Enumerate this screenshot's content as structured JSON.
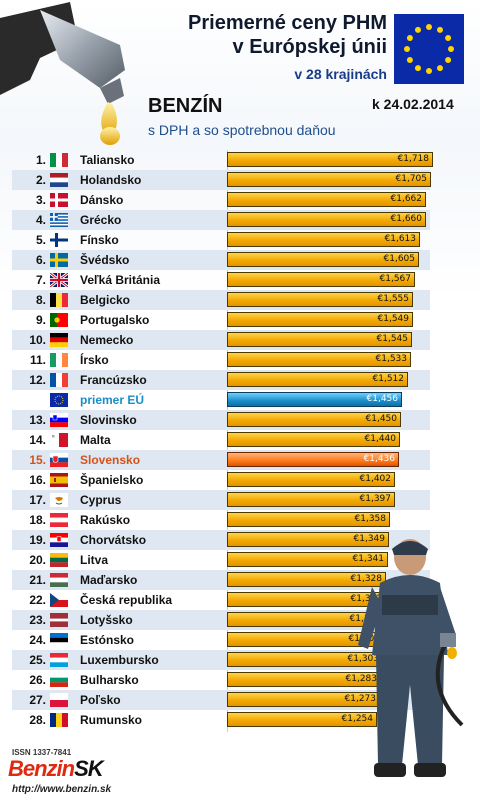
{
  "header": {
    "title_line1": "Priemerné ceny PHM",
    "title_line2": "v Európskej únii",
    "title_line3": "v 28 krajinách",
    "fuel": "BENZÍN",
    "subtitle": "s DPH a so spotrebnou daňou",
    "date": "k 24.02.2014"
  },
  "footer": {
    "issn": "ISSN 1337-7841",
    "logo_main": "Benzin",
    "logo_suffix": "SK",
    "url": "http://www.benzin.sk"
  },
  "colors": {
    "bar": "#f2a600",
    "eu_bar": "#1a8ec8",
    "sk_bar": "#ff7a1a",
    "title": "#101a2e"
  },
  "chart_data": {
    "type": "bar",
    "orientation": "horizontal",
    "title": "Priemerné ceny PHM v Európskej únii",
    "xlabel": "",
    "ylabel": "",
    "xlim": [
      0,
      1.718
    ],
    "grid": false,
    "rows": [
      {
        "rank": "1.",
        "country": "Taliansko",
        "value": 1.718,
        "label": "€1,718",
        "flag": "italy-flag"
      },
      {
        "rank": "2.",
        "country": "Holandsko",
        "value": 1.705,
        "label": "€1,705",
        "flag": "netherlands-flag"
      },
      {
        "rank": "3.",
        "country": "Dánsko",
        "value": 1.662,
        "label": "€1,662",
        "flag": "denmark-flag"
      },
      {
        "rank": "4.",
        "country": "Grécko",
        "value": 1.66,
        "label": "€1,660",
        "flag": "greece-flag"
      },
      {
        "rank": "5.",
        "country": "Fínsko",
        "value": 1.613,
        "label": "€1,613",
        "flag": "finland-flag"
      },
      {
        "rank": "6.",
        "country": "Švédsko",
        "value": 1.605,
        "label": "€1,605",
        "flag": "sweden-flag"
      },
      {
        "rank": "7.",
        "country": "Veľká Británia",
        "value": 1.567,
        "label": "€1,567",
        "flag": "uk-flag"
      },
      {
        "rank": "8.",
        "country": "Belgicko",
        "value": 1.555,
        "label": "€1,555",
        "flag": "belgium-flag"
      },
      {
        "rank": "9.",
        "country": "Portugalsko",
        "value": 1.549,
        "label": "€1,549",
        "flag": "portugal-flag"
      },
      {
        "rank": "10.",
        "country": "Nemecko",
        "value": 1.545,
        "label": "€1,545",
        "flag": "germany-flag"
      },
      {
        "rank": "11.",
        "country": "Írsko",
        "value": 1.533,
        "label": "€1,533",
        "flag": "ireland-flag"
      },
      {
        "rank": "12.",
        "country": "Francúzsko",
        "value": 1.512,
        "label": "€1,512",
        "flag": "france-flag"
      },
      {
        "rank": "",
        "country": "priemer EÚ",
        "value": 1.456,
        "label": "€1,456",
        "flag": "eu-flag",
        "kind": "eu"
      },
      {
        "rank": "13.",
        "country": "Slovinsko",
        "value": 1.45,
        "label": "€1,450",
        "flag": "slovenia-flag"
      },
      {
        "rank": "14.",
        "country": "Malta",
        "value": 1.44,
        "label": "€1,440",
        "flag": "malta-flag"
      },
      {
        "rank": "15.",
        "country": "Slovensko",
        "value": 1.436,
        "label": "€1,436",
        "flag": "slovakia-flag",
        "kind": "sk"
      },
      {
        "rank": "16.",
        "country": "Španielsko",
        "value": 1.402,
        "label": "€1,402",
        "flag": "spain-flag"
      },
      {
        "rank": "17.",
        "country": "Cyprus",
        "value": 1.397,
        "label": "€1,397",
        "flag": "cyprus-flag"
      },
      {
        "rank": "18.",
        "country": "Rakúsko",
        "value": 1.358,
        "label": "€1,358",
        "flag": "austria-flag"
      },
      {
        "rank": "19.",
        "country": "Chorvátsko",
        "value": 1.349,
        "label": "€1,349",
        "flag": "croatia-flag"
      },
      {
        "rank": "20.",
        "country": "Litva",
        "value": 1.341,
        "label": "€1,341",
        "flag": "lithuania-flag"
      },
      {
        "rank": "21.",
        "country": "Maďarsko",
        "value": 1.328,
        "label": "€1,328",
        "flag": "hungary-flag"
      },
      {
        "rank": "22.",
        "country": "Česká republika",
        "value": 1.322,
        "label": "€1,322",
        "flag": "czech-flag"
      },
      {
        "rank": "23.",
        "country": "Lotyšsko",
        "value": 1.314,
        "label": "€1,314",
        "flag": "latvia-flag"
      },
      {
        "rank": "24.",
        "country": "Estónsko",
        "value": 1.306,
        "label": "€1,306",
        "flag": "estonia-flag"
      },
      {
        "rank": "25.",
        "country": "Luxembursko",
        "value": 1.303,
        "label": "€1,303",
        "flag": "luxembourg-flag"
      },
      {
        "rank": "26.",
        "country": "Bulharsko",
        "value": 1.283,
        "label": "€1,283",
        "flag": "bulgaria-flag"
      },
      {
        "rank": "27.",
        "country": "Poľsko",
        "value": 1.273,
        "label": "€1,273",
        "flag": "poland-flag"
      },
      {
        "rank": "28.",
        "country": "Rumunsko",
        "value": 1.254,
        "label": "€1,254",
        "flag": "romania-flag"
      }
    ]
  }
}
